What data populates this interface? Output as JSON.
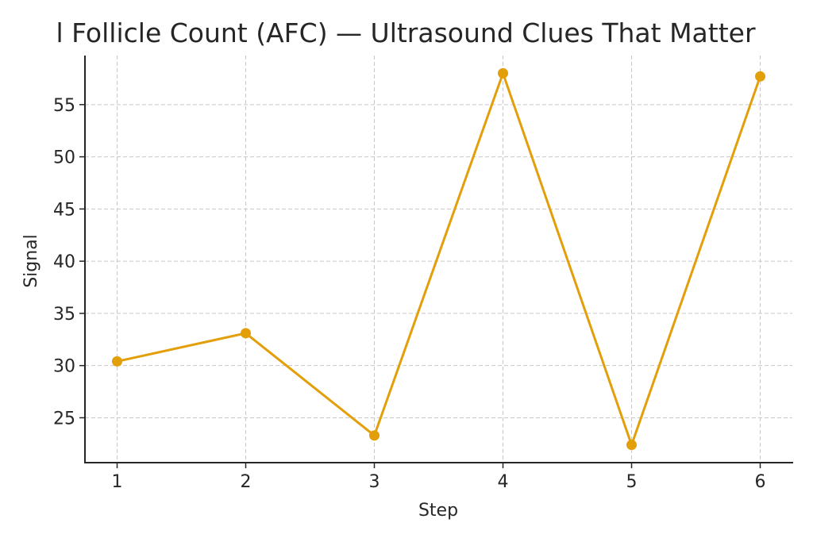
{
  "chart_data": {
    "type": "line",
    "title": "l Follicle Count (AFC) — Ultrasound Clues That Matter",
    "xlabel": "Step",
    "ylabel": "Signal",
    "x": [
      1,
      2,
      3,
      4,
      5,
      6
    ],
    "series": [
      {
        "name": "Signal",
        "values": [
          30.4,
          33.1,
          23.3,
          58.0,
          22.4,
          57.7
        ],
        "color": "#E39F0A",
        "marker": "circle"
      }
    ],
    "xticks": [
      "1",
      "2",
      "3",
      "4",
      "5",
      "6"
    ],
    "yticks": [
      "25",
      "30",
      "35",
      "40",
      "45",
      "50",
      "55"
    ],
    "xlim": [
      0.75,
      6.25
    ],
    "ylim": [
      20.7,
      59.7
    ],
    "grid": true,
    "legend": null
  }
}
